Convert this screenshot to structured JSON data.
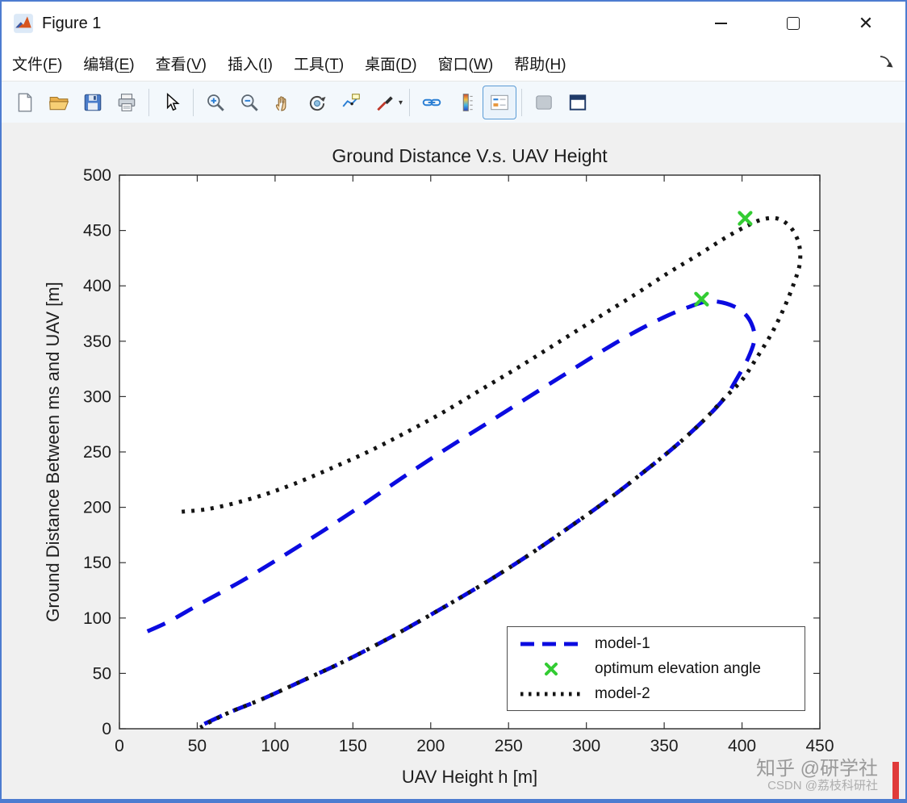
{
  "window": {
    "title": "Figure 1",
    "controls": {
      "minimize": "—",
      "maximize": "",
      "close": "✕"
    }
  },
  "menu": {
    "items": [
      "文件(F)",
      "编辑(E)",
      "查看(V)",
      "插入(I)",
      "工具(T)",
      "桌面(D)",
      "窗口(W)",
      "帮助(H)"
    ]
  },
  "toolbar": {
    "buttons": [
      "new-figure",
      "open-file",
      "save-figure",
      "print-figure",
      "edit-plot",
      "zoom-in",
      "zoom-out",
      "pan",
      "rotate-3d",
      "data-cursor",
      "brush-data",
      "link-plot",
      "insert-colorbar",
      "insert-legend",
      "hide-plot-tools",
      "dock-figure"
    ]
  },
  "chart_data": {
    "type": "line",
    "title": "Ground Distance V.s. UAV  Height",
    "xlabel": "UAV Height h [m]",
    "ylabel": "Ground Distance Between ms and UAV [m]",
    "xlim": [
      0,
      450
    ],
    "ylim": [
      0,
      500
    ],
    "xticks": [
      0,
      50,
      100,
      150,
      200,
      250,
      300,
      350,
      400,
      450
    ],
    "yticks": [
      0,
      50,
      100,
      150,
      200,
      250,
      300,
      350,
      400,
      450,
      500
    ],
    "grid": false,
    "series": [
      {
        "name": "model-1",
        "color": "#0b0be0",
        "dash": "24 15",
        "width": 5,
        "points": [
          [
            18,
            88
          ],
          [
            32,
            97
          ],
          [
            52,
            113
          ],
          [
            78,
            133
          ],
          [
            104,
            155
          ],
          [
            130,
            178
          ],
          [
            156,
            202
          ],
          [
            182,
            227
          ],
          [
            208,
            251
          ],
          [
            234,
            274
          ],
          [
            260,
            297
          ],
          [
            286,
            320
          ],
          [
            310,
            341
          ],
          [
            332,
            359
          ],
          [
            352,
            373
          ],
          [
            366,
            381
          ],
          [
            378,
            386
          ],
          [
            390,
            384
          ],
          [
            400,
            377
          ],
          [
            406,
            366
          ],
          [
            408,
            352
          ],
          [
            404,
            335
          ],
          [
            397,
            317
          ],
          [
            389,
            299
          ],
          [
            375,
            278
          ],
          [
            357,
            255
          ],
          [
            336,
            231
          ],
          [
            313,
            206
          ],
          [
            288,
            181
          ],
          [
            262,
            156
          ],
          [
            234,
            131
          ],
          [
            205,
            107
          ],
          [
            176,
            84
          ],
          [
            146,
            62
          ],
          [
            117,
            43
          ],
          [
            92,
            27
          ],
          [
            71,
            15
          ],
          [
            57,
            6
          ],
          [
            50,
            1
          ]
        ]
      },
      {
        "name": "model-2",
        "color": "#141414",
        "dash": "4 8",
        "width": 5,
        "points": [
          [
            40,
            196
          ],
          [
            55,
            198
          ],
          [
            72,
            203
          ],
          [
            92,
            211
          ],
          [
            112,
            221
          ],
          [
            134,
            234
          ],
          [
            158,
            249
          ],
          [
            182,
            266
          ],
          [
            207,
            285
          ],
          [
            232,
            306
          ],
          [
            257,
            327
          ],
          [
            282,
            349
          ],
          [
            307,
            371
          ],
          [
            331,
            392
          ],
          [
            353,
            412
          ],
          [
            373,
            429
          ],
          [
            390,
            444
          ],
          [
            403,
            454
          ],
          [
            413,
            460
          ],
          [
            422,
            461
          ],
          [
            429,
            456
          ],
          [
            434,
            447
          ],
          [
            437,
            435
          ],
          [
            437,
            419
          ],
          [
            433,
            401
          ],
          [
            427,
            380
          ],
          [
            419,
            357
          ],
          [
            409,
            334
          ],
          [
            400,
            315
          ],
          [
            389,
            299
          ],
          [
            375,
            278
          ],
          [
            357,
            255
          ],
          [
            336,
            231
          ],
          [
            313,
            206
          ],
          [
            288,
            181
          ],
          [
            262,
            156
          ],
          [
            234,
            131
          ],
          [
            205,
            107
          ],
          [
            176,
            84
          ],
          [
            146,
            62
          ],
          [
            117,
            43
          ],
          [
            92,
            27
          ],
          [
            71,
            15
          ],
          [
            58,
            6
          ],
          [
            52,
            1
          ]
        ]
      }
    ],
    "markers": {
      "name": "optimum elevation angle",
      "color": "#33cc33",
      "points": [
        [
          374,
          388
        ],
        [
          402,
          461
        ]
      ]
    },
    "legend": {
      "entries": [
        "model-1",
        "optimum elevation angle",
        "model-2"
      ],
      "position": "southeast"
    }
  },
  "watermarks": {
    "zhihu": "知乎 @硏学社",
    "csdn": "CSDN @荔枝科研社"
  }
}
